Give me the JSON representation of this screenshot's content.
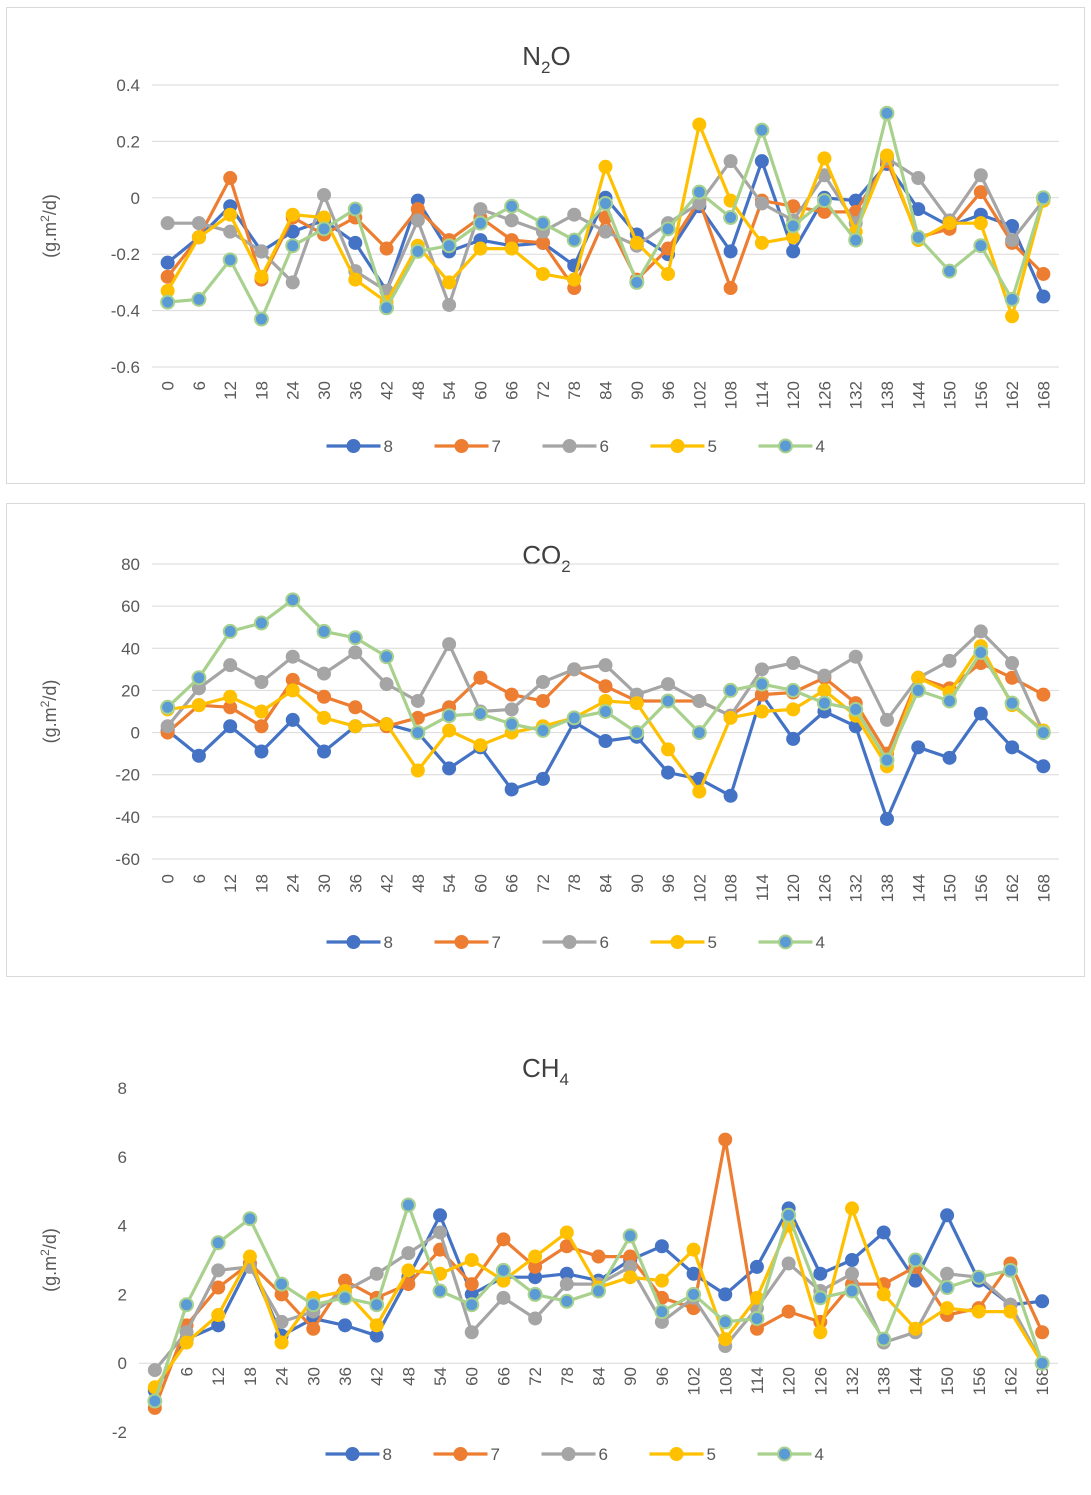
{
  "colors": {
    "8": "#4472c4",
    "7": "#ed7d31",
    "6": "#a5a5a5",
    "5": "#ffc000",
    "4_line": "#a9d18e",
    "4_marker": "#5b9bd5"
  },
  "chart_data": [
    {
      "type": "line",
      "title": "N2O",
      "title_base": "N",
      "title_sub": "2",
      "title_tail": "O",
      "ylabel": "(g.m2/d)",
      "ylabel_pre": "(g.m",
      "ylabel_sup": "2",
      "ylabel_post": "/d)",
      "ylim": [
        -0.6,
        0.4
      ],
      "yticks": [
        -0.6,
        -0.4,
        -0.2,
        0,
        0.2,
        0.4
      ],
      "ytick_labels": [
        "-0.6",
        "-0.4",
        "-0.2",
        "0",
        "0.2",
        "0.4"
      ],
      "grid": true,
      "legend": "bottom",
      "x": [
        "0",
        "6",
        "12",
        "18",
        "24",
        "30",
        "36",
        "42",
        "48",
        "54",
        "60",
        "66",
        "72",
        "78",
        "84",
        "90",
        "96",
        "102",
        "108",
        "114",
        "120",
        "126",
        "132",
        "138",
        "144",
        "150",
        "156",
        "162",
        "168"
      ],
      "series": [
        {
          "name": "8",
          "values": [
            -0.23,
            -0.14,
            -0.03,
            -0.19,
            -0.12,
            -0.08,
            -0.16,
            -0.33,
            -0.01,
            -0.19,
            -0.15,
            -0.17,
            -0.16,
            -0.24,
            0.0,
            -0.13,
            -0.2,
            -0.03,
            -0.19,
            0.13,
            -0.19,
            0.0,
            -0.01,
            0.12,
            -0.04,
            -0.1,
            -0.06,
            -0.1,
            -0.35
          ]
        },
        {
          "name": "7",
          "values": [
            -0.28,
            -0.14,
            0.07,
            -0.29,
            -0.07,
            -0.13,
            -0.07,
            -0.18,
            -0.04,
            -0.15,
            -0.07,
            -0.15,
            -0.16,
            -0.32,
            -0.07,
            -0.29,
            -0.18,
            -0.01,
            -0.32,
            -0.01,
            -0.03,
            -0.05,
            -0.05,
            0.13,
            -0.14,
            -0.11,
            0.02,
            -0.16,
            -0.27
          ]
        },
        {
          "name": "6",
          "values": [
            -0.09,
            -0.09,
            -0.12,
            -0.19,
            -0.3,
            0.01,
            -0.26,
            -0.33,
            -0.08,
            -0.38,
            -0.04,
            -0.08,
            -0.12,
            -0.06,
            -0.12,
            -0.17,
            -0.09,
            -0.02,
            0.13,
            -0.02,
            -0.08,
            0.08,
            -0.09,
            0.14,
            0.07,
            -0.08,
            0.08,
            -0.15,
            -0.01
          ]
        },
        {
          "name": "5",
          "values": [
            -0.33,
            -0.14,
            -0.06,
            -0.28,
            -0.06,
            -0.07,
            -0.29,
            -0.37,
            -0.17,
            -0.3,
            -0.18,
            -0.18,
            -0.27,
            -0.29,
            0.11,
            -0.16,
            -0.27,
            0.26,
            -0.01,
            -0.16,
            -0.14,
            0.14,
            -0.12,
            0.15,
            -0.15,
            -0.09,
            -0.09,
            -0.42,
            -0.01
          ]
        },
        {
          "name": "4",
          "values": [
            -0.37,
            -0.36,
            -0.22,
            -0.43,
            -0.17,
            -0.11,
            -0.04,
            -0.39,
            -0.19,
            -0.17,
            -0.09,
            -0.03,
            -0.09,
            -0.15,
            -0.02,
            -0.3,
            -0.11,
            0.02,
            -0.07,
            0.24,
            -0.1,
            -0.01,
            -0.15,
            0.3,
            -0.14,
            -0.26,
            -0.17,
            -0.36,
            0.0
          ]
        }
      ]
    },
    {
      "type": "line",
      "title": "CO2",
      "title_base": "CO",
      "title_sub": "2",
      "title_tail": "",
      "ylabel": "(g.m2/d)",
      "ylabel_pre": "(g.m",
      "ylabel_sup": "2",
      "ylabel_post": "/d)",
      "ylim": [
        -60,
        80
      ],
      "yticks": [
        -60,
        -40,
        -20,
        0,
        20,
        40,
        60,
        80
      ],
      "ytick_labels": [
        "-60",
        "-40",
        "-20",
        "0",
        "20",
        "40",
        "60",
        "80"
      ],
      "grid": true,
      "legend": "bottom",
      "x": [
        "0",
        "6",
        "12",
        "18",
        "24",
        "30",
        "36",
        "42",
        "48",
        "54",
        "60",
        "66",
        "72",
        "78",
        "84",
        "90",
        "96",
        "102",
        "108",
        "114",
        "120",
        "126",
        "132",
        "138",
        "144",
        "150",
        "156",
        "162",
        "168"
      ],
      "series": [
        {
          "name": "8",
          "values": [
            1,
            -11,
            3,
            -9,
            6,
            -9,
            3,
            4,
            0,
            -17,
            -7,
            -27,
            -22,
            5,
            -4,
            -2,
            -19,
            -22,
            -30,
            18,
            -3,
            10,
            3,
            -41,
            -7,
            -12,
            9,
            -7,
            -16
          ]
        },
        {
          "name": "7",
          "values": [
            0,
            13,
            12,
            3,
            25,
            17,
            12,
            3,
            7,
            12,
            26,
            18,
            15,
            30,
            22,
            15,
            15,
            15,
            8,
            18,
            19,
            26,
            14,
            -10,
            26,
            21,
            33,
            26,
            18
          ]
        },
        {
          "name": "6",
          "values": [
            3,
            21,
            32,
            24,
            36,
            28,
            38,
            23,
            15,
            42,
            10,
            11,
            24,
            30,
            32,
            18,
            23,
            15,
            8,
            30,
            33,
            27,
            36,
            6,
            26,
            34,
            48,
            33,
            0
          ]
        },
        {
          "name": "5",
          "values": [
            11,
            13,
            17,
            10,
            20,
            7,
            3,
            4,
            -18,
            1,
            -6,
            0,
            3,
            7,
            15,
            14,
            -8,
            -28,
            7,
            10,
            11,
            20,
            8,
            -16,
            26,
            19,
            41,
            13,
            1
          ]
        },
        {
          "name": "4",
          "values": [
            12,
            26,
            48,
            52,
            63,
            48,
            45,
            36,
            0,
            8,
            9,
            4,
            1,
            7,
            10,
            0,
            15,
            0,
            20,
            23,
            20,
            14,
            11,
            -13,
            20,
            15,
            38,
            14,
            0
          ]
        }
      ]
    },
    {
      "type": "line",
      "title": "CH4",
      "title_base": "CH",
      "title_sub": "4",
      "title_tail": "",
      "ylabel": "(g.m2/d)",
      "ylabel_pre": "(g.m",
      "ylabel_sup": "2",
      "ylabel_post": "/d)",
      "ylim": [
        -2,
        8
      ],
      "yticks": [
        -2,
        0,
        2,
        4,
        6,
        8
      ],
      "ytick_labels": [
        "-2",
        "0",
        "2",
        "4",
        "6",
        "8"
      ],
      "grid": false,
      "legend": "bottom",
      "x": [
        "0",
        "6",
        "12",
        "18",
        "24",
        "30",
        "36",
        "42",
        "48",
        "54",
        "60",
        "66",
        "72",
        "78",
        "84",
        "90",
        "96",
        "102",
        "108",
        "114",
        "120",
        "126",
        "132",
        "138",
        "144",
        "150",
        "156",
        "162",
        "168"
      ],
      "series": [
        {
          "name": "8",
          "values": [
            -0.8,
            0.7,
            1.1,
            2.9,
            0.8,
            1.3,
            1.1,
            0.8,
            2.5,
            4.3,
            2.0,
            2.5,
            2.5,
            2.6,
            2.4,
            3.0,
            3.4,
            2.6,
            2.0,
            2.8,
            4.5,
            2.6,
            3.0,
            3.8,
            2.4,
            4.3,
            2.4,
            1.7,
            1.8
          ]
        },
        {
          "name": "7",
          "values": [
            -1.3,
            1.1,
            2.2,
            2.9,
            2.0,
            1.0,
            2.4,
            1.9,
            2.3,
            3.3,
            2.3,
            3.6,
            2.8,
            3.4,
            3.1,
            3.1,
            1.9,
            1.6,
            6.5,
            1.0,
            1.5,
            1.2,
            2.3,
            2.3,
            2.8,
            1.4,
            1.6,
            2.9,
            0.9
          ]
        },
        {
          "name": "6",
          "values": [
            -0.2,
            0.9,
            2.7,
            2.8,
            1.2,
            1.5,
            2.1,
            2.6,
            3.2,
            3.8,
            0.9,
            1.9,
            1.3,
            2.3,
            2.3,
            2.8,
            1.2,
            1.9,
            0.5,
            1.6,
            2.9,
            2.1,
            2.6,
            0.6,
            0.9,
            2.6,
            2.5,
            1.7,
            0.0
          ]
        },
        {
          "name": "5",
          "values": [
            -0.7,
            0.6,
            1.4,
            3.1,
            0.6,
            1.9,
            2.1,
            1.1,
            2.7,
            2.6,
            3.0,
            2.4,
            3.1,
            3.8,
            2.2,
            2.5,
            2.4,
            3.3,
            0.7,
            1.9,
            4.0,
            0.9,
            4.5,
            2.0,
            1.0,
            1.6,
            1.5,
            1.5,
            0.0
          ]
        },
        {
          "name": "4",
          "values": [
            -1.1,
            1.7,
            3.5,
            4.2,
            2.3,
            1.7,
            1.9,
            1.7,
            4.6,
            2.1,
            1.7,
            2.7,
            2.0,
            1.8,
            2.1,
            3.7,
            1.5,
            2.0,
            1.2,
            1.3,
            4.3,
            1.9,
            2.1,
            0.7,
            3.0,
            2.2,
            2.5,
            2.7,
            0.0
          ]
        }
      ]
    }
  ]
}
